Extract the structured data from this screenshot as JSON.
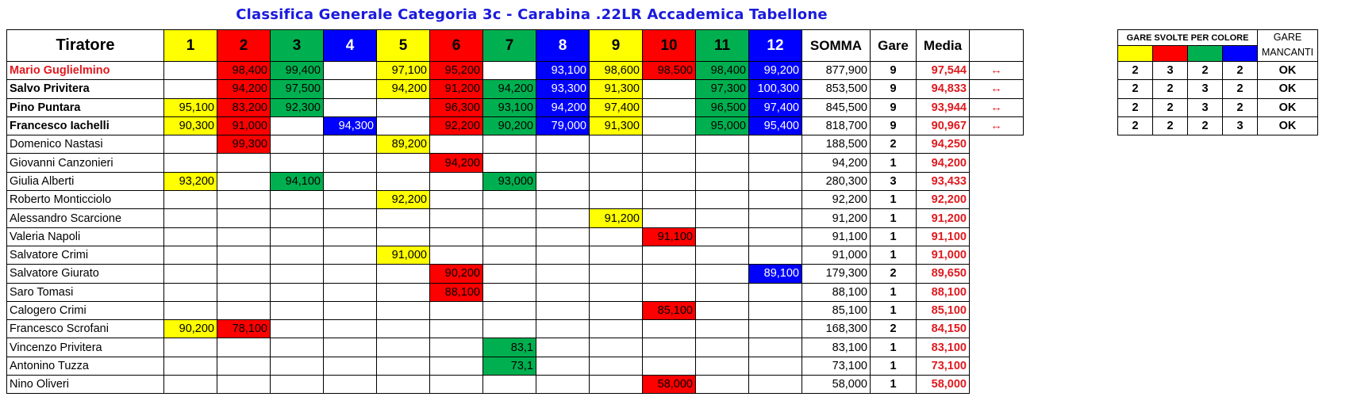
{
  "title": "Classifica Generale Categoria 3c - Carabina .22LR Accademica Tabellone",
  "header": {
    "tiratore": "Tiratore",
    "rounds": [
      "1",
      "2",
      "3",
      "4",
      "5",
      "6",
      "7",
      "8",
      "9",
      "10",
      "11",
      "12"
    ],
    "somma": "SOMMA",
    "gare": "Gare",
    "media": "Media"
  },
  "round_colors": [
    "yellow",
    "red",
    "green",
    "blue",
    "yellow",
    "red",
    "green",
    "blue",
    "yellow",
    "red",
    "green",
    "blue"
  ],
  "colors": {
    "yellow": "#ffff00",
    "red": "#ff0000",
    "green": "#00b050",
    "blue": "#0000ff",
    "media_text": "#e0191e",
    "title": "#1a1adc"
  },
  "rows": [
    {
      "name": "Mario Guglielmino",
      "scores": [
        "",
        "98,400",
        "99,400",
        "",
        "97,100",
        "95,200",
        "",
        "93,100",
        "98,600",
        "98,500",
        "98,400",
        "99,200"
      ],
      "somma": "877,900",
      "gare": "9",
      "media": "97,544"
    },
    {
      "name": "Salvo Privitera",
      "scores": [
        "",
        "94,200",
        "97,500",
        "",
        "94,200",
        "91,200",
        "94,200",
        "93,300",
        "91,300",
        "",
        "97,300",
        "100,300"
      ],
      "somma": "853,500",
      "gare": "9",
      "media": "94,833"
    },
    {
      "name": "Pino Puntara",
      "scores": [
        "95,100",
        "83,200",
        "92,300",
        "",
        "",
        "96,300",
        "93,100",
        "94,200",
        "97,400",
        "",
        "96,500",
        "97,400"
      ],
      "somma": "845,500",
      "gare": "9",
      "media": "93,944"
    },
    {
      "name": "Francesco Iachelli",
      "scores": [
        "90,300",
        "91,000",
        "",
        "94,300",
        "",
        "92,200",
        "90,200",
        "79,000",
        "91,300",
        "",
        "95,000",
        "95,400"
      ],
      "somma": "818,700",
      "gare": "9",
      "media": "90,967"
    },
    {
      "name": "Domenico Nastasi",
      "scores": [
        "",
        "99,300",
        "",
        "",
        "89,200",
        "",
        "",
        "",
        "",
        "",
        "",
        ""
      ],
      "somma": "188,500",
      "gare": "2",
      "media": "94,250"
    },
    {
      "name": "Giovanni Canzonieri",
      "scores": [
        "",
        "",
        "",
        "",
        "",
        "94,200",
        "",
        "",
        "",
        "",
        "",
        ""
      ],
      "somma": "94,200",
      "gare": "1",
      "media": "94,200"
    },
    {
      "name": "Giulia Alberti",
      "scores": [
        "93,200",
        "",
        "94,100",
        "",
        "",
        "",
        "93,000",
        "",
        "",
        "",
        "",
        ""
      ],
      "somma": "280,300",
      "gare": "3",
      "media": "93,433"
    },
    {
      "name": "Roberto Monticciolo",
      "scores": [
        "",
        "",
        "",
        "",
        "92,200",
        "",
        "",
        "",
        "",
        "",
        "",
        ""
      ],
      "somma": "92,200",
      "gare": "1",
      "media": "92,200"
    },
    {
      "name": "Alessandro Scarcione",
      "scores": [
        "",
        "",
        "",
        "",
        "",
        "",
        "",
        "",
        "91,200",
        "",
        "",
        ""
      ],
      "somma": "91,200",
      "gare": "1",
      "media": "91,200"
    },
    {
      "name": "Valeria Napoli",
      "scores": [
        "",
        "",
        "",
        "",
        "",
        "",
        "",
        "",
        "",
        "91,100",
        "",
        ""
      ],
      "somma": "91,100",
      "gare": "1",
      "media": "91,100"
    },
    {
      "name": "Salvatore Crimi",
      "scores": [
        "",
        "",
        "",
        "",
        "91,000",
        "",
        "",
        "",
        "",
        "",
        "",
        ""
      ],
      "somma": "91,000",
      "gare": "1",
      "media": "91,000"
    },
    {
      "name": "Salvatore Giurato",
      "scores": [
        "",
        "",
        "",
        "",
        "",
        "90,200",
        "",
        "",
        "",
        "",
        "",
        "89,100"
      ],
      "somma": "179,300",
      "gare": "2",
      "media": "89,650"
    },
    {
      "name": "Saro Tomasi",
      "scores": [
        "",
        "",
        "",
        "",
        "",
        "88,100",
        "",
        "",
        "",
        "",
        "",
        ""
      ],
      "somma": "88,100",
      "gare": "1",
      "media": "88,100"
    },
    {
      "name": "Calogero Crimi",
      "scores": [
        "",
        "",
        "",
        "",
        "",
        "",
        "",
        "",
        "",
        "85,100",
        "",
        ""
      ],
      "somma": "85,100",
      "gare": "1",
      "media": "85,100"
    },
    {
      "name": "Francesco Scrofani",
      "scores": [
        "90,200",
        "78,100",
        "",
        "",
        "",
        "",
        "",
        "",
        "",
        "",
        "",
        ""
      ],
      "somma": "168,300",
      "gare": "2",
      "media": "84,150"
    },
    {
      "name": "Vincenzo Privitera",
      "scores": [
        "",
        "",
        "",
        "",
        "",
        "",
        "83,1",
        "",
        "",
        "",
        "",
        ""
      ],
      "somma": "83,100",
      "gare": "1",
      "media": "83,100"
    },
    {
      "name": "Antonino Tuzza",
      "scores": [
        "",
        "",
        "",
        "",
        "",
        "",
        "73,1",
        "",
        "",
        "",
        "",
        ""
      ],
      "somma": "73,100",
      "gare": "1",
      "media": "73,100"
    },
    {
      "name": "Nino Oliveri",
      "scores": [
        "",
        "",
        "",
        "",
        "",
        "",
        "",
        "",
        "",
        "58,000",
        "",
        ""
      ],
      "somma": "58,000",
      "gare": "1",
      "media": "58,000"
    }
  ],
  "arrow_glyph": "↔",
  "side": {
    "gare_svolte_title": "GARE SVOLTE PER COLORE",
    "gare_mancanti_title": "GARE MANCANTI",
    "swatches": [
      "yellow",
      "red",
      "green",
      "blue"
    ],
    "rows": [
      {
        "counts": [
          "2",
          "3",
          "2",
          "2"
        ],
        "status": "OK"
      },
      {
        "counts": [
          "2",
          "2",
          "3",
          "2"
        ],
        "status": "OK"
      },
      {
        "counts": [
          "2",
          "2",
          "3",
          "2"
        ],
        "status": "OK"
      },
      {
        "counts": [
          "2",
          "2",
          "2",
          "3"
        ],
        "status": "OK"
      }
    ]
  }
}
